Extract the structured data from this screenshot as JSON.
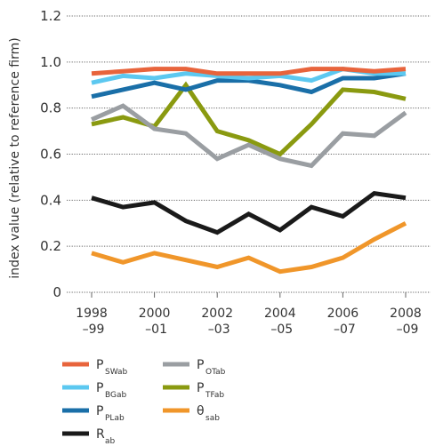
{
  "chart_data": {
    "type": "line",
    "title": "",
    "xlabel": "",
    "ylabel": "index value (relative to reference firm)",
    "ylim": [
      0,
      1.2
    ],
    "yticks": [
      "0",
      "0.2",
      "0.4",
      "0.6",
      "0.8",
      "1.0",
      "1.2"
    ],
    "grid": "horizontal dotted",
    "legend_position": "bottom",
    "x": [
      "1998–99",
      "1999–00",
      "2000–01",
      "2001–02",
      "2002–03",
      "2003–04",
      "2004–05",
      "2005–06",
      "2006–07",
      "2007–08",
      "2008–09"
    ],
    "xtick_labels": [
      {
        "line1": "1998",
        "line2": "–99"
      },
      {
        "line1": "2000",
        "line2": "–01"
      },
      {
        "line1": "2002",
        "line2": "–03"
      },
      {
        "line1": "2004",
        "line2": "–05"
      },
      {
        "line1": "2006",
        "line2": "–07"
      },
      {
        "line1": "2008",
        "line2": "–09"
      }
    ],
    "series": [
      {
        "name": "P_SWab",
        "label_main": "P",
        "label_sub": "SWab",
        "color": "#e8643c",
        "values": [
          0.95,
          0.96,
          0.97,
          0.97,
          0.95,
          0.95,
          0.95,
          0.97,
          0.97,
          0.96,
          0.97
        ]
      },
      {
        "name": "P_BGab",
        "label_main": "P",
        "label_sub": "BGab",
        "color": "#5cc8f0",
        "values": [
          0.91,
          0.94,
          0.93,
          0.95,
          0.94,
          0.93,
          0.94,
          0.92,
          0.97,
          0.95,
          0.95
        ]
      },
      {
        "name": "P_PLab",
        "label_main": "P",
        "label_sub": "PLab",
        "color": "#1a6fa8",
        "values": [
          0.85,
          0.88,
          0.91,
          0.88,
          0.92,
          0.92,
          0.9,
          0.87,
          0.93,
          0.93,
          0.95
        ]
      },
      {
        "name": "R_ab",
        "label_main": "R",
        "label_sub": "ab",
        "color": "#1a1a1a",
        "values": [
          0.41,
          0.37,
          0.39,
          0.31,
          0.26,
          0.34,
          0.27,
          0.37,
          0.33,
          0.43,
          0.41
        ]
      },
      {
        "name": "P_OTab",
        "label_main": "P",
        "label_sub": "OTab",
        "color": "#9a9ea2",
        "values": [
          0.75,
          0.81,
          0.71,
          0.69,
          0.58,
          0.64,
          0.58,
          0.55,
          0.69,
          0.68,
          0.78
        ]
      },
      {
        "name": "P_TFab",
        "label_main": "P",
        "label_sub": "TFab",
        "color": "#8a9a10",
        "values": [
          0.73,
          0.76,
          0.72,
          0.9,
          0.7,
          0.66,
          0.6,
          0.73,
          0.88,
          0.87,
          0.84
        ]
      },
      {
        "name": "θ_sab",
        "label_main": "θ",
        "label_sub": "sab",
        "color": "#f0962a",
        "values": [
          0.17,
          0.13,
          0.17,
          0.14,
          0.11,
          0.15,
          0.09,
          0.11,
          0.15,
          0.23,
          0.3
        ]
      }
    ]
  }
}
